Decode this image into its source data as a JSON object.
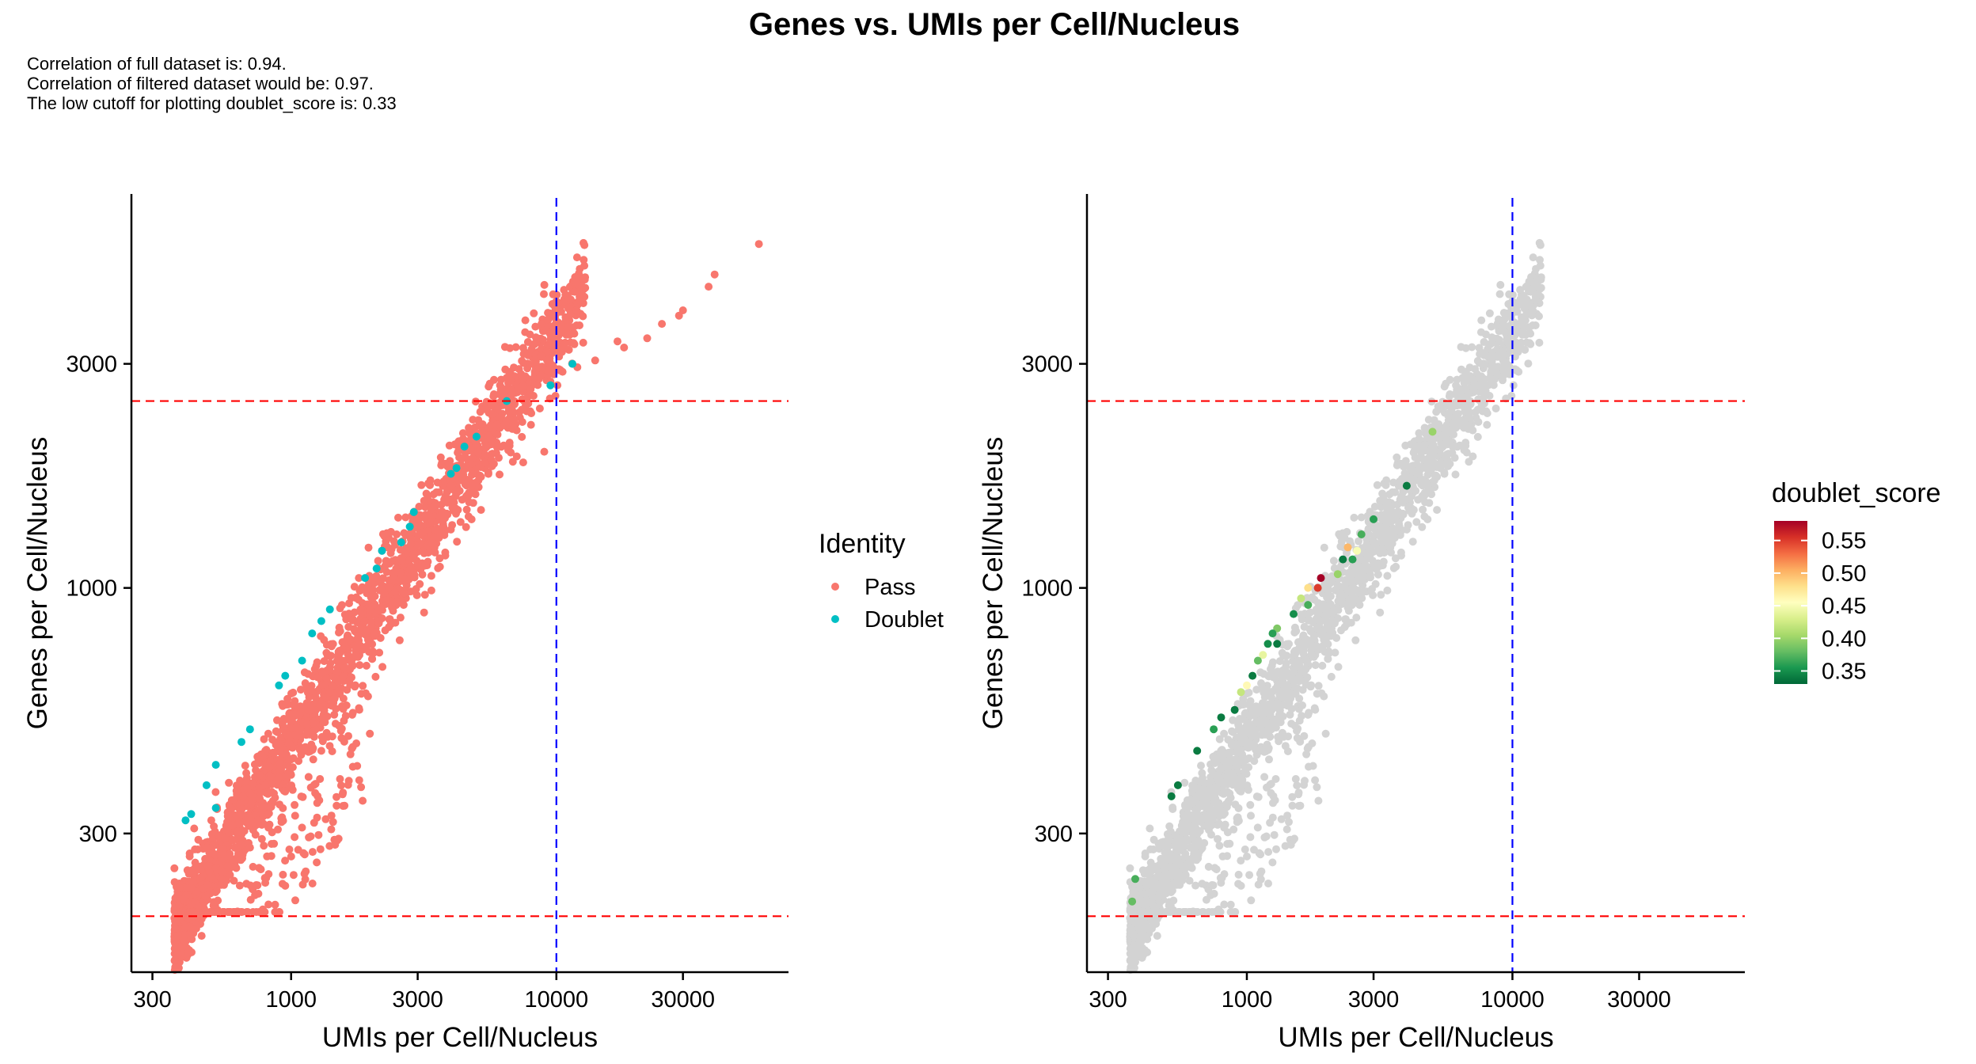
{
  "figure": {
    "title": "Genes vs. UMIs per Cell/Nucleus",
    "notes": [
      "Correlation of full dataset is: 0.94.",
      "Correlation of filtered dataset would be: 0.97.",
      "The low cutoff for plotting doublet_score is: 0.33"
    ]
  },
  "chart_data": [
    {
      "type": "scatter",
      "panel": "left",
      "title": "",
      "xlabel": "UMIs per Cell/Nucleus",
      "ylabel": "Genes per Cell/Nucleus",
      "x_scale": "log10",
      "y_scale": "log10",
      "xlim": [
        250,
        75000
      ],
      "ylim": [
        152,
        6900
      ],
      "x_ticks": [
        300,
        1000,
        3000,
        10000,
        30000
      ],
      "x_tick_labels": [
        "300",
        "1000",
        "3000",
        "10000",
        "30000"
      ],
      "y_ticks": [
        300,
        1000,
        3000
      ],
      "y_tick_labels": [
        "300",
        "1000",
        "3000"
      ],
      "grid": false,
      "cutoff_lines": {
        "horizontal_red_dashed": [
          200,
          2500
        ],
        "vertical_blue_dashed": [
          10000
        ]
      },
      "legend": {
        "title": "Identity",
        "placement": "right",
        "entries": [
          {
            "label": "Pass",
            "color": "#F8766D"
          },
          {
            "label": "Doublet",
            "color": "#00BFC4"
          }
        ]
      },
      "series": [
        {
          "name": "Pass",
          "color": "#F8766D",
          "points": [
            [
              58000,
              5400
            ],
            [
              39500,
              4650
            ],
            [
              37500,
              4380
            ],
            [
              30000,
              3900
            ],
            [
              29000,
              3800
            ],
            [
              25000,
              3650
            ],
            [
              22000,
              3400
            ],
            [
              18000,
              3250
            ],
            [
              17000,
              3350
            ],
            [
              14000,
              3050
            ],
            [
              12000,
              2950
            ],
            [
              9500,
              2750
            ],
            [
              8000,
              2650
            ],
            [
              6000,
              2400
            ],
            [
              9000,
              1950
            ],
            [
              7500,
              1850
            ],
            [
              5000,
              1750
            ],
            [
              4000,
              1650
            ],
            [
              3000,
              1400
            ],
            [
              2500,
              1300
            ],
            [
              2200,
              1200
            ],
            [
              1800,
              1050
            ],
            [
              1500,
              700
            ],
            [
              1400,
              600
            ],
            [
              1300,
              450
            ],
            [
              1000,
              400
            ],
            [
              800,
              380
            ],
            [
              750,
              320
            ],
            [
              650,
              330
            ],
            [
              700,
              280
            ],
            [
              500,
              320
            ],
            [
              480,
              280
            ],
            [
              380,
              230
            ],
            [
              400,
              200
            ],
            [
              370,
              195
            ],
            [
              420,
              230
            ],
            [
              560,
              270
            ]
          ]
        },
        {
          "name": "Doublet",
          "color": "#00BFC4",
          "points": [
            [
              11500,
              3000
            ],
            [
              9500,
              2700
            ],
            [
              6500,
              2500
            ],
            [
              5000,
              2100
            ],
            [
              4500,
              2000
            ],
            [
              4200,
              1800
            ],
            [
              4000,
              1750
            ],
            [
              2900,
              1450
            ],
            [
              2800,
              1350
            ],
            [
              2600,
              1250
            ],
            [
              2200,
              1200
            ],
            [
              2100,
              1100
            ],
            [
              1900,
              1050
            ],
            [
              1400,
              900
            ],
            [
              1300,
              850
            ],
            [
              1200,
              800
            ],
            [
              1100,
              700
            ],
            [
              950,
              650
            ],
            [
              900,
              620
            ],
            [
              700,
              500
            ],
            [
              650,
              470
            ],
            [
              520,
              420
            ],
            [
              480,
              380
            ],
            [
              400,
              320
            ],
            [
              420,
              330
            ],
            [
              520,
              340
            ]
          ]
        }
      ]
    },
    {
      "type": "scatter",
      "panel": "right",
      "title": "",
      "xlabel": "UMIs per Cell/Nucleus",
      "ylabel": "Genes per Cell/Nucleus",
      "x_scale": "log10",
      "y_scale": "log10",
      "xlim": [
        250,
        75000
      ],
      "ylim": [
        152,
        6900
      ],
      "x_ticks": [
        300,
        1000,
        3000,
        10000,
        30000
      ],
      "x_tick_labels": [
        "300",
        "1000",
        "3000",
        "10000",
        "30000"
      ],
      "y_ticks": [
        300,
        1000,
        3000
      ],
      "y_tick_labels": [
        "300",
        "1000",
        "3000"
      ],
      "grid": false,
      "cutoff_lines": {
        "horizontal_red_dashed": [
          200,
          2500
        ],
        "vertical_blue_dashed": [
          10000
        ]
      },
      "background_color": "#D3D3D3",
      "colorbar": {
        "title": "doublet_score",
        "placement": "right",
        "min": 0.33,
        "max": 0.58,
        "ticks": [
          0.35,
          0.4,
          0.45,
          0.5,
          0.55
        ],
        "tick_labels": [
          "0.35",
          "0.40",
          "0.45",
          "0.50",
          "0.55"
        ],
        "colors": [
          "#006837",
          "#1A9850",
          "#66BD63",
          "#A6D96A",
          "#D9EF8B",
          "#FFFFBF",
          "#FEE08B",
          "#FDAE61",
          "#F46D43",
          "#D73027",
          "#A50026"
        ]
      },
      "series": [
        {
          "name": "doublet_score",
          "points": [
            [
              5000,
              2150,
              0.4
            ],
            [
              4000,
              1650,
              0.34
            ],
            [
              3000,
              1400,
              0.36
            ],
            [
              2700,
              1300,
              0.37
            ],
            [
              2600,
              1200,
              0.45
            ],
            [
              2500,
              1150,
              0.36
            ],
            [
              2400,
              1220,
              0.5
            ],
            [
              2300,
              1150,
              0.34
            ],
            [
              2200,
              1070,
              0.4
            ],
            [
              1900,
              1050,
              0.58
            ],
            [
              1850,
              1000,
              0.55
            ],
            [
              1700,
              1000,
              0.48
            ],
            [
              1700,
              920,
              0.37
            ],
            [
              1600,
              950,
              0.42
            ],
            [
              1500,
              880,
              0.35
            ],
            [
              1300,
              820,
              0.39
            ],
            [
              1300,
              760,
              0.34
            ],
            [
              1250,
              800,
              0.36
            ],
            [
              1200,
              760,
              0.35
            ],
            [
              1150,
              720,
              0.44
            ],
            [
              1100,
              700,
              0.38
            ],
            [
              1050,
              650,
              0.34
            ],
            [
              1000,
              620,
              0.46
            ],
            [
              950,
              600,
              0.42
            ],
            [
              900,
              550,
              0.34
            ],
            [
              800,
              530,
              0.34
            ],
            [
              750,
              500,
              0.36
            ],
            [
              650,
              450,
              0.34
            ],
            [
              550,
              380,
              0.34
            ],
            [
              520,
              360,
              0.34
            ],
            [
              380,
              240,
              0.37
            ],
            [
              370,
              215,
              0.38
            ]
          ]
        }
      ]
    }
  ]
}
